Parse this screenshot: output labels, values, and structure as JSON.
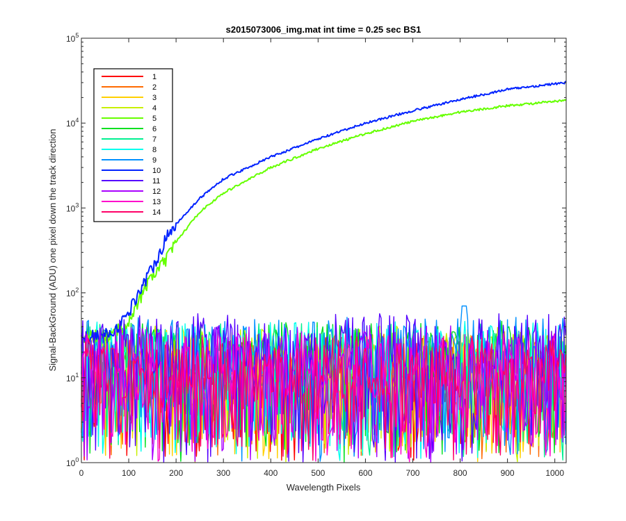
{
  "chart_data": {
    "type": "line",
    "title": "s2015073006_img.mat int time = 0.25 sec   BS1",
    "xlabel": "Wavelength Pixels",
    "ylabel": "Signal-BackGround (ADU) one pixel down the track direction",
    "xlim": [
      0,
      1024
    ],
    "ylim": [
      1,
      100000
    ],
    "yscale": "log",
    "x_ticks": [
      "0",
      "100",
      "200",
      "300",
      "400",
      "500",
      "600",
      "700",
      "800",
      "900",
      "1000"
    ],
    "y_ticks": [
      {
        "base": "10",
        "exp": "0"
      },
      {
        "base": "10",
        "exp": "1"
      },
      {
        "base": "10",
        "exp": "2"
      },
      {
        "base": "10",
        "exp": "3"
      },
      {
        "base": "10",
        "exp": "4"
      },
      {
        "base": "10",
        "exp": "5"
      }
    ],
    "grid": false,
    "legend_position": "top-left",
    "series": [
      {
        "name": "1",
        "color": "#ff0000",
        "kind": "noise",
        "level": 12
      },
      {
        "name": "2",
        "color": "#ff6a00",
        "kind": "noise",
        "level": 13
      },
      {
        "name": "3",
        "color": "#ffd000",
        "kind": "noise",
        "level": 14
      },
      {
        "name": "4",
        "color": "#c8f000",
        "kind": "noise",
        "level": 16
      },
      {
        "name": "5",
        "color": "#66ff00",
        "kind": "signal",
        "points": [
          [
            0,
            30
          ],
          [
            60,
            32
          ],
          [
            90,
            40
          ],
          [
            110,
            60
          ],
          [
            130,
            100
          ],
          [
            150,
            160
          ],
          [
            180,
            250
          ],
          [
            200,
            400
          ],
          [
            250,
            900
          ],
          [
            300,
            1500
          ],
          [
            400,
            3000
          ],
          [
            500,
            5000
          ],
          [
            600,
            7500
          ],
          [
            700,
            10500
          ],
          [
            800,
            13500
          ],
          [
            900,
            16000
          ],
          [
            1000,
            18000
          ],
          [
            1024,
            18500
          ]
        ]
      },
      {
        "name": "6",
        "color": "#00e020",
        "kind": "noise",
        "level": 18
      },
      {
        "name": "7",
        "color": "#00f090",
        "kind": "noise",
        "level": 17
      },
      {
        "name": "8",
        "color": "#00ffee",
        "kind": "noise",
        "level": 18
      },
      {
        "name": "9",
        "color": "#0090ff",
        "kind": "noise",
        "level": 20,
        "peak": {
          "x": 808,
          "y": 140
        }
      },
      {
        "name": "10",
        "color": "#0022ff",
        "kind": "signal",
        "points": [
          [
            0,
            30
          ],
          [
            50,
            32
          ],
          [
            80,
            40
          ],
          [
            100,
            60
          ],
          [
            120,
            100
          ],
          [
            150,
            200
          ],
          [
            180,
            450
          ],
          [
            200,
            650
          ],
          [
            250,
            1300
          ],
          [
            300,
            2200
          ],
          [
            400,
            4000
          ],
          [
            500,
            6500
          ],
          [
            600,
            10000
          ],
          [
            700,
            14000
          ],
          [
            800,
            19000
          ],
          [
            900,
            25000
          ],
          [
            1000,
            29000
          ],
          [
            1024,
            30000
          ]
        ]
      },
      {
        "name": "11",
        "color": "#5500ff",
        "kind": "noise",
        "level": 22
      },
      {
        "name": "12",
        "color": "#aa00ff",
        "kind": "noise",
        "level": 16
      },
      {
        "name": "13",
        "color": "#ff00cc",
        "kind": "noise",
        "level": 13
      },
      {
        "name": "14",
        "color": "#ff0066",
        "kind": "noise",
        "level": 12
      }
    ]
  }
}
